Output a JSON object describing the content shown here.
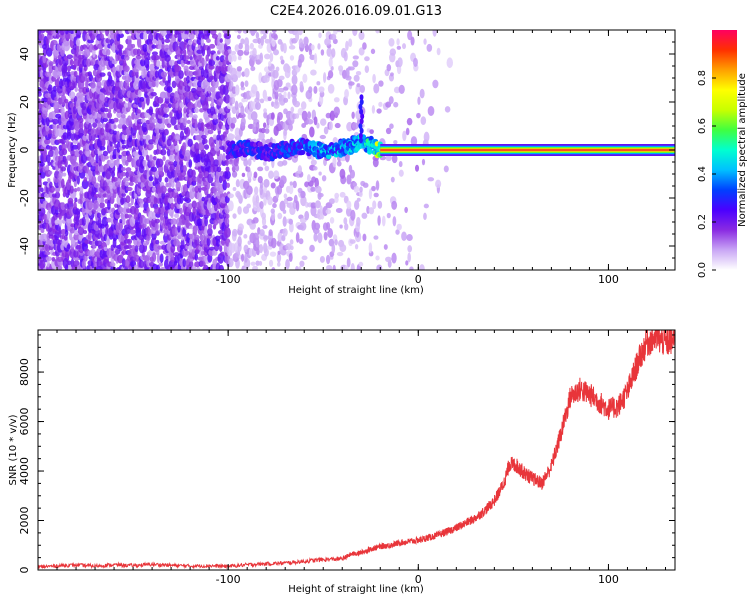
{
  "title": "C2E4.2026.016.09.01.G13",
  "chart_data": [
    {
      "type": "heatmap",
      "title": "C2E4.2026.016.09.01.G13",
      "xlabel": "Height of straight line (km)",
      "ylabel": "Frequency (Hz)",
      "xlim": [
        -200,
        135
      ],
      "ylim": [
        -50,
        50
      ],
      "x_ticks": [
        -100,
        0,
        100
      ],
      "x_tick_labels": [
        "-100",
        "0",
        "100"
      ],
      "y_ticks": [
        -40,
        -20,
        0,
        20,
        40
      ],
      "y_tick_labels": [
        "-40",
        "-20",
        "0",
        "20",
        "40"
      ],
      "grid": false,
      "description_of_content": "dense noisy spectral power below -100 km, concentrated signal near 0 Hz from about -100 km upward, a single strong line at 0 Hz from about -25 km to 135 km",
      "colorbar": {
        "label": "Normalized spectral amplitude",
        "range": [
          0,
          1
        ],
        "ticks": [
          0.0,
          0.2,
          0.4,
          0.6,
          0.8
        ],
        "tick_labels": [
          "0.0",
          "0.2",
          "0.4",
          "0.6",
          "0.8"
        ],
        "colors": [
          "#ffffff",
          "#c9a6f5",
          "#8a2be2",
          "#4b00ff",
          "#0040ff",
          "#00c0ff",
          "#00ffd0",
          "#40ff40",
          "#c8ff00",
          "#ffff00",
          "#ffa000",
          "#ff3000",
          "#ff0060"
        ]
      },
      "ridge": {
        "x": [
          -100,
          -90,
          -80,
          -70,
          -60,
          -50,
          -40,
          -30,
          -25,
          -20,
          -10,
          0,
          10,
          20,
          60,
          100,
          135
        ],
        "y": [
          0,
          1,
          -1,
          0,
          2,
          -1,
          1,
          3,
          2,
          0,
          1,
          0,
          0,
          0,
          0,
          0,
          0
        ],
        "amplitude": [
          0.3,
          0.35,
          0.3,
          0.35,
          0.4,
          0.45,
          0.45,
          0.5,
          0.55,
          0.75,
          0.8,
          0.85,
          0.9,
          0.9,
          0.9,
          0.9,
          0.9
        ]
      }
    },
    {
      "type": "line",
      "xlabel": "Height of straight line (km)",
      "ylabel": "SNR (10 * v/v)",
      "xlim": [
        -200,
        135
      ],
      "ylim": [
        0,
        9700
      ],
      "x_ticks": [
        -100,
        0,
        100
      ],
      "x_tick_labels": [
        "-100",
        "0",
        "100"
      ],
      "y_ticks": [
        0,
        2000,
        4000,
        6000,
        8000
      ],
      "y_tick_labels": [
        "0",
        "2000",
        "4000",
        "6000",
        "8000"
      ],
      "grid": false,
      "line_color": "#e8353a",
      "series": [
        {
          "x": [
            -200,
            -190,
            -180,
            -170,
            -160,
            -150,
            -140,
            -130,
            -120,
            -110,
            -100,
            -90,
            -80,
            -70,
            -60,
            -50,
            -40,
            -35,
            -30,
            -25,
            -20,
            -15,
            -10,
            -5,
            0,
            5,
            10,
            15,
            20,
            25,
            30,
            35,
            40,
            45,
            48,
            52,
            56,
            60,
            65,
            70,
            75,
            80,
            85,
            90,
            95,
            100,
            105,
            110,
            115,
            120,
            125,
            130,
            135
          ],
          "y": [
            120,
            170,
            200,
            160,
            210,
            180,
            230,
            190,
            160,
            170,
            150,
            210,
            250,
            280,
            350,
            420,
            450,
            650,
            700,
            850,
            950,
            1000,
            1100,
            1150,
            1200,
            1300,
            1400,
            1550,
            1700,
            1900,
            2100,
            2400,
            2800,
            3500,
            4300,
            4200,
            3900,
            3700,
            3500,
            4200,
            5500,
            7000,
            7300,
            7100,
            6800,
            6500,
            6600,
            7200,
            8300,
            9200,
            9400,
            9200,
            9300
          ]
        }
      ]
    }
  ]
}
